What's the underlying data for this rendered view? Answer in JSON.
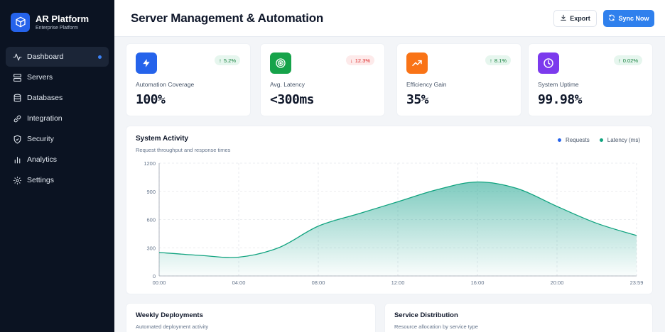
{
  "brand": {
    "title": "AR Platform",
    "subtitle": "Enterprise Platform"
  },
  "sidebar": {
    "items": [
      {
        "label": "Dashboard",
        "icon": "activity-icon",
        "active": true
      },
      {
        "label": "Servers",
        "icon": "server-icon"
      },
      {
        "label": "Databases",
        "icon": "database-icon"
      },
      {
        "label": "Integration",
        "icon": "link-icon"
      },
      {
        "label": "Security",
        "icon": "shield-icon"
      },
      {
        "label": "Analytics",
        "icon": "bar-chart-icon"
      },
      {
        "label": "Settings",
        "icon": "gear-icon"
      }
    ]
  },
  "header": {
    "title": "Server Management & Automation",
    "export_label": "Export",
    "sync_label": "Sync Now"
  },
  "stats": [
    {
      "label": "Automation Coverage",
      "value": "100%",
      "change": "5.2%",
      "direction": "up",
      "icon": "lightning-icon",
      "color": "#2563eb"
    },
    {
      "label": "Avg. Latency",
      "value": "<300ms",
      "change": "12.3%",
      "direction": "down",
      "icon": "target-icon",
      "color": "#16a34a"
    },
    {
      "label": "Efficiency Gain",
      "value": "35%",
      "change": "8.1%",
      "direction": "up",
      "icon": "trending-up-icon",
      "color": "#f97316"
    },
    {
      "label": "System Uptime",
      "value": "99.98%",
      "change": "0.02%",
      "direction": "up",
      "icon": "clock-icon",
      "color": "#7c3aed"
    }
  ],
  "activity": {
    "title": "System Activity",
    "subtitle": "Request throughput and response times",
    "legend": [
      {
        "name": "Requests",
        "color": "#2563eb"
      },
      {
        "name": "Latency (ms)",
        "color": "#10a37f"
      }
    ]
  },
  "chart_data": {
    "type": "area",
    "x": [
      "00:00",
      "02:00",
      "04:00",
      "06:00",
      "08:00",
      "10:00",
      "12:00",
      "14:00",
      "16:00",
      "18:00",
      "20:00",
      "22:00",
      "23:59"
    ],
    "x_ticks": [
      "00:00",
      "04:00",
      "08:00",
      "12:00",
      "16:00",
      "20:00",
      "23:59"
    ],
    "series": [
      {
        "name": "Latency (ms)",
        "values": [
          250,
          220,
          200,
          300,
          530,
          660,
          790,
          920,
          1000,
          930,
          740,
          560,
          430
        ]
      }
    ],
    "ylim": [
      0,
      1200
    ],
    "y_ticks": [
      0,
      300,
      600,
      900,
      1200
    ],
    "grid": true,
    "legend_position": "top-right"
  },
  "bottom": [
    {
      "title": "Weekly Deployments",
      "subtitle": "Automated deployment activity"
    },
    {
      "title": "Service Distribution",
      "subtitle": "Resource allocation by service type"
    }
  ],
  "colors": {
    "sidebar_bg": "#0b1322",
    "accent": "#2f80ed",
    "chart_line": "#10a37f"
  }
}
